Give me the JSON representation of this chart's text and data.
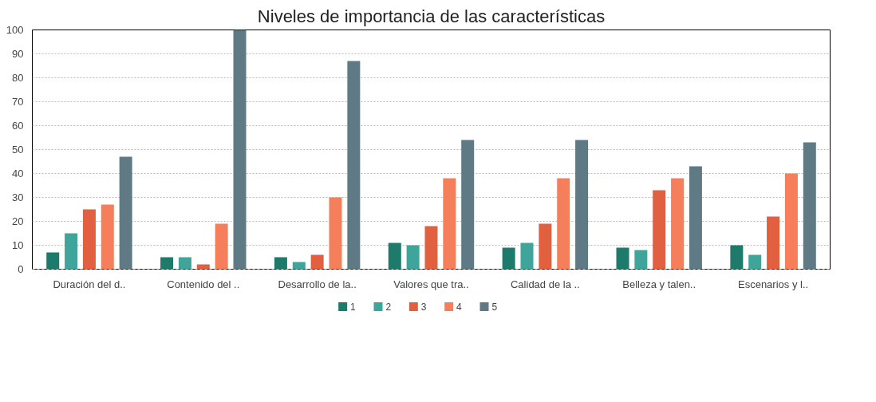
{
  "chart_data": {
    "type": "bar",
    "title": "Niveles de importancia de las características",
    "categories": [
      "Duración del d..",
      "Contenido del ..",
      "Desarrollo de la..",
      "Valores que tra..",
      "Calidad de la ..",
      "Belleza y talen..",
      "Escenarios y l.."
    ],
    "series": [
      {
        "name": "1",
        "color": "#1e7b6b",
        "values": [
          7,
          5,
          5,
          11,
          9,
          9,
          10
        ]
      },
      {
        "name": "2",
        "color": "#3fa59a",
        "values": [
          15,
          5,
          3,
          10,
          11,
          8,
          6
        ]
      },
      {
        "name": "3",
        "color": "#e06040",
        "values": [
          25,
          2,
          6,
          18,
          19,
          33,
          22
        ]
      },
      {
        "name": "4",
        "color": "#f57f5b",
        "values": [
          27,
          19,
          30,
          38,
          38,
          38,
          40
        ]
      },
      {
        "name": "5",
        "color": "#5f7a85",
        "values": [
          47,
          100,
          87,
          54,
          54,
          43,
          53
        ]
      }
    ],
    "ylim": [
      0,
      100
    ],
    "yticks": [
      0,
      10,
      20,
      30,
      40,
      50,
      60,
      70,
      80,
      90,
      100
    ],
    "grid": "y",
    "legend": "bottom"
  }
}
